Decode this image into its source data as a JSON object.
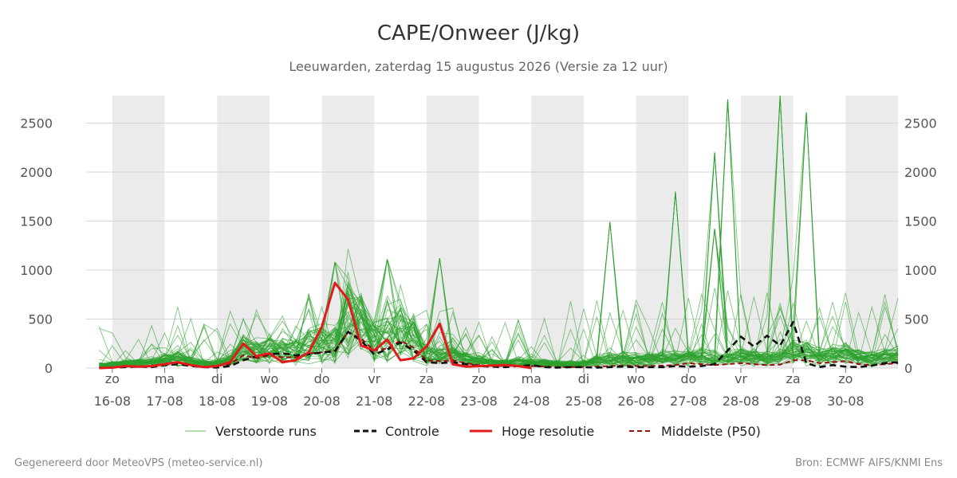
{
  "title": "CAPE/Onweer (J/kg)",
  "subtitle": "Leeuwarden, zaterdag 15 augustus 2026 (Versie za 12 uur)",
  "footer_left": "Gegenereerd door MeteoVPS (meteo-service.nl)",
  "footer_right": "Bron: ECMWF AIFS/KNMI Ens",
  "colors": {
    "ensemble": "#2ca02c",
    "control": "#111111",
    "hires": "#e31a1c",
    "median": "#9b0f0f",
    "shade": "#ebebeb",
    "grid": "#d6d6d6"
  },
  "chart_data": {
    "type": "line",
    "x_unit": "hours since zo 16-08 00:00",
    "xlim": [
      -12,
      360
    ],
    "ylim": [
      0,
      2780
    ],
    "y_ticks": [
      0,
      500,
      1000,
      1500,
      2000,
      2500
    ],
    "x_ticks": [
      {
        "t": 0,
        "day": "zo",
        "date": "16-08"
      },
      {
        "t": 24,
        "day": "ma",
        "date": "17-08"
      },
      {
        "t": 48,
        "day": "di",
        "date": "18-08"
      },
      {
        "t": 72,
        "day": "wo",
        "date": "19-08"
      },
      {
        "t": 96,
        "day": "do",
        "date": "20-08"
      },
      {
        "t": 120,
        "day": "vr",
        "date": "21-08"
      },
      {
        "t": 144,
        "day": "za",
        "date": "22-08"
      },
      {
        "t": 168,
        "day": "zo",
        "date": "23-08"
      },
      {
        "t": 192,
        "day": "ma",
        "date": "24-08"
      },
      {
        "t": 216,
        "day": "di",
        "date": "25-08"
      },
      {
        "t": 240,
        "day": "wo",
        "date": "26-08"
      },
      {
        "t": 264,
        "day": "do",
        "date": "27-08"
      },
      {
        "t": 288,
        "day": "vr",
        "date": "28-08"
      },
      {
        "t": 312,
        "day": "za",
        "date": "29-08"
      },
      {
        "t": 336,
        "day": "zo",
        "date": "30-08"
      }
    ],
    "shaded_bands": [
      [
        0,
        24
      ],
      [
        48,
        72
      ],
      [
        96,
        120
      ],
      [
        144,
        168
      ],
      [
        192,
        216
      ],
      [
        240,
        264
      ],
      [
        288,
        312
      ],
      [
        336,
        360
      ]
    ],
    "grid": true,
    "legend_position": "bottom",
    "series": [
      {
        "name": "Controle",
        "style": "dashed",
        "x": [
          -6,
          0,
          6,
          12,
          18,
          24,
          30,
          36,
          42,
          48,
          54,
          60,
          66,
          72,
          78,
          84,
          90,
          96,
          102,
          108,
          114,
          120,
          126,
          132,
          138,
          144,
          150,
          156,
          162,
          168,
          174,
          180,
          186,
          192,
          198,
          204,
          210,
          216,
          222,
          228,
          234,
          240,
          246,
          252,
          258,
          264,
          270,
          276,
          282,
          288,
          294,
          300,
          306,
          312,
          318,
          324,
          330,
          336,
          342,
          348,
          354,
          360
        ],
        "values": [
          0,
          5,
          10,
          15,
          10,
          30,
          40,
          20,
          10,
          5,
          20,
          80,
          120,
          140,
          150,
          130,
          140,
          160,
          170,
          370,
          280,
          140,
          190,
          260,
          180,
          60,
          50,
          60,
          40,
          20,
          15,
          10,
          20,
          30,
          10,
          5,
          10,
          10,
          5,
          10,
          15,
          10,
          10,
          10,
          20,
          15,
          20,
          40,
          180,
          320,
          220,
          330,
          230,
          470,
          50,
          10,
          30,
          15,
          10,
          25,
          50,
          60
        ]
      },
      {
        "name": "Hoge resolutie",
        "style": "solid-thick",
        "x": [
          -6,
          0,
          6,
          12,
          18,
          24,
          30,
          36,
          42,
          48,
          54,
          60,
          66,
          72,
          78,
          84,
          90,
          96,
          102,
          108,
          114,
          120,
          126,
          132,
          138,
          144,
          150,
          156,
          162,
          168,
          174,
          180,
          186,
          192
        ],
        "values": [
          0,
          5,
          20,
          15,
          20,
          40,
          60,
          30,
          10,
          20,
          60,
          250,
          120,
          150,
          60,
          80,
          160,
          420,
          870,
          700,
          230,
          180,
          290,
          80,
          100,
          220,
          450,
          40,
          15,
          20,
          25,
          30,
          20,
          0
        ]
      },
      {
        "name": "Middelste (P50)",
        "style": "dashed-thin",
        "x": [
          -6,
          0,
          6,
          12,
          18,
          24,
          30,
          36,
          42,
          48,
          54,
          60,
          66,
          72,
          78,
          84,
          90,
          96,
          102,
          108,
          114,
          120,
          126,
          132,
          138,
          144,
          150,
          156,
          162,
          168,
          174,
          180,
          186,
          192,
          198,
          204,
          210,
          216,
          222,
          228,
          234,
          240,
          246,
          252,
          258,
          264,
          270,
          276,
          282,
          288,
          294,
          300,
          306,
          312,
          318,
          324,
          330,
          336,
          342,
          348,
          354,
          360
        ],
        "values": [
          0,
          5,
          15,
          20,
          20,
          40,
          55,
          30,
          15,
          20,
          40,
          130,
          100,
          130,
          110,
          110,
          150,
          160,
          180,
          370,
          300,
          180,
          200,
          280,
          210,
          80,
          70,
          80,
          50,
          30,
          20,
          20,
          25,
          20,
          15,
          10,
          10,
          10,
          15,
          20,
          25,
          20,
          20,
          25,
          30,
          50,
          40,
          30,
          40,
          50,
          40,
          30,
          35,
          80,
          80,
          50,
          60,
          70,
          40,
          30,
          40,
          50
        ]
      }
    ],
    "ensemble": {
      "name": "Verstoorde runs",
      "count": 50,
      "note": "thin light-green member lines",
      "x_step_hours": 6,
      "x_start": -6,
      "x_end": 360,
      "highlight_peaks": [
        {
          "x": 306,
          "y": 2780
        },
        {
          "x": 318,
          "y": 2610
        },
        {
          "x": 282,
          "y": 2740
        },
        {
          "x": 276,
          "y": 2200
        },
        {
          "x": 258,
          "y": 1800
        },
        {
          "x": 228,
          "y": 1490
        },
        {
          "x": 276,
          "y": 1420
        },
        {
          "x": 150,
          "y": 1120
        },
        {
          "x": 126,
          "y": 1110
        },
        {
          "x": 102,
          "y": 1080
        }
      ]
    },
    "legend": [
      "Verstoorde runs",
      "Controle",
      "Hoge resolutie",
      "Middelste (P50)"
    ]
  }
}
